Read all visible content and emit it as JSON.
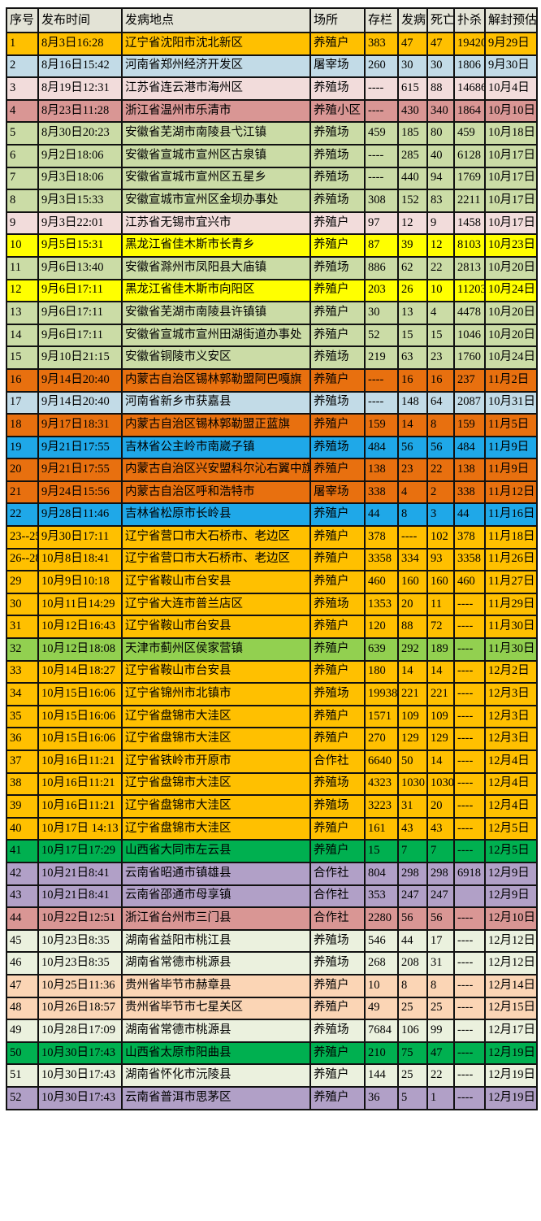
{
  "colors": {
    "header_bg": "#E3E3D6",
    "grid_line": "#111111",
    "red_date": "#F10000",
    "page_bg": "#FFFFFF",
    "gold": "#FFC000",
    "light_blue": "#C2DBE7",
    "pink": "#F2DCDB",
    "rose": "#D99694",
    "olive_green": "#CBDCA6",
    "yellow": "#FFFF00",
    "orange": "#E8700F",
    "bright_blue": "#1FA8E8",
    "lime_green": "#92D050",
    "green": "#00B050",
    "purple": "#B1A0C7",
    "cream": "#EBF1DE",
    "peach": "#FBD5B5"
  },
  "chart_data": {
    "type": "table",
    "columns": [
      "序号",
      "发布时间",
      "发病地点",
      "场所",
      "存栏",
      "发病",
      "死亡",
      "扑杀",
      "解封预估"
    ],
    "rows": [
      {
        "no": "1",
        "time": "8月3日16:28",
        "place": "辽宁省沈阳市沈北新区",
        "venue": "养殖户",
        "stock": "383",
        "sick": "47",
        "dead": "47",
        "culled": "19420",
        "unseal": "9月29日",
        "bg": "#FFC000",
        "unseal_red": true
      },
      {
        "no": "2",
        "time": "8月16日15:42",
        "place": "河南省郑州经济开发区",
        "venue": "屠宰场",
        "stock": "260",
        "sick": "30",
        "dead": "30",
        "culled": "1806",
        "unseal": "9月30日",
        "bg": "#C2DBE7",
        "unseal_red": true
      },
      {
        "no": "3",
        "time": "8月19日12:31",
        "place": "江苏省连云港市海州区",
        "venue": "养殖场",
        "stock": "----",
        "sick": "615",
        "dead": "88",
        "culled": "14686",
        "unseal": "10月4日",
        "bg": "#F2DCDB",
        "unseal_red": true
      },
      {
        "no": "4",
        "time": "8月23日11:28",
        "place": "浙江省温州市乐清市",
        "venue": "养殖小区",
        "stock": "----",
        "sick": "430",
        "dead": "340",
        "culled": "1864",
        "unseal": "10月10日",
        "bg": "#D99694",
        "unseal_red": true
      },
      {
        "no": "5",
        "time": "8月30日20:23",
        "place": "安徽省芜湖市南陵县弋江镇",
        "venue": "养殖场",
        "stock": "459",
        "sick": "185",
        "dead": "80",
        "culled": "459",
        "unseal": "10月18日",
        "bg": "#CBDCA6",
        "unseal_red": true
      },
      {
        "no": "6",
        "time": "9月2日18:06",
        "place": "安徽省宣城市宣州区古泉镇",
        "venue": "养殖场",
        "stock": "----",
        "sick": "285",
        "dead": "40",
        "culled": "6128",
        "unseal": "10月17日",
        "bg": "#CBDCA6",
        "unseal_red": true
      },
      {
        "no": "7",
        "time": "9月3日18:06",
        "place": "安徽省宣城市宣州区五星乡",
        "venue": "养殖场",
        "stock": "----",
        "sick": "440",
        "dead": "94",
        "culled": "1769",
        "unseal": "10月17日",
        "bg": "#CBDCA6",
        "unseal_red": true
      },
      {
        "no": "8",
        "time": "9月3日15:33",
        "place": "安徽宣城市宣州区金坝办事处",
        "venue": "养殖场",
        "stock": "308",
        "sick": "152",
        "dead": "83",
        "culled": "2211",
        "unseal": "10月17日",
        "bg": "#CBDCA6",
        "unseal_red": true
      },
      {
        "no": "9",
        "time": "9月3日22:01",
        "place": "江苏省无锡市宜兴市",
        "venue": "养殖户",
        "stock": "97",
        "sick": "12",
        "dead": "9",
        "culled": "1458",
        "unseal": "10月17日",
        "bg": "#F2DCDB",
        "unseal_red": true
      },
      {
        "no": "10",
        "time": "9月5日15:31",
        "place": "黑龙江省佳木斯市长青乡",
        "venue": "养殖户",
        "stock": "87",
        "sick": "39",
        "dead": "12",
        "culled": "8103",
        "unseal": "10月23日",
        "bg": "#FFFF00",
        "unseal_red": false
      },
      {
        "no": "11",
        "time": "9月6日13:40",
        "place": "安徽省滁州市凤阳县大庙镇",
        "venue": "养殖场",
        "stock": "886",
        "sick": "62",
        "dead": "22",
        "culled": "2813",
        "unseal": "10月20日",
        "bg": "#CBDCA6",
        "unseal_red": true
      },
      {
        "no": "12",
        "time": "9月6日17:11",
        "place": "黑龙江省佳木斯市向阳区",
        "venue": "养殖户",
        "stock": "203",
        "sick": "26",
        "dead": "10",
        "culled": "11203",
        "unseal": "10月24日",
        "bg": "#FFFF00",
        "unseal_red": false
      },
      {
        "no": "13",
        "time": "9月6日17:11",
        "place": "安徽省芜湖市南陵县许镇镇",
        "venue": "养殖户",
        "stock": "30",
        "sick": "13",
        "dead": "4",
        "culled": "4478",
        "unseal": "10月20日",
        "bg": "#CBDCA6",
        "unseal_red": true
      },
      {
        "no": "14",
        "time": "9月6日17:11",
        "place": "安徽省宣城市宣州田湖街道办事处",
        "venue": "养殖户",
        "stock": "52",
        "sick": "15",
        "dead": "15",
        "culled": "1046",
        "unseal": "10月20日",
        "bg": "#CBDCA6",
        "unseal_red": true
      },
      {
        "no": "15",
        "time": "9月10日21:15",
        "place": "安徽省铜陵市义安区",
        "venue": "养殖场",
        "stock": "219",
        "sick": "63",
        "dead": "23",
        "culled": "1760",
        "unseal": "10月24日",
        "bg": "#CBDCA6",
        "unseal_red": true
      },
      {
        "no": "16",
        "time": "9月14日20:40",
        "place": "内蒙古自治区锡林郭勒盟阿巴嘎旗",
        "venue": "养殖户",
        "stock": "----",
        "sick": "16",
        "dead": "16",
        "culled": "237",
        "unseal": "11月2日",
        "bg": "#E8700F",
        "unseal_red": false
      },
      {
        "no": "17",
        "time": "9月14日20:40",
        "place": "河南省新乡市获嘉县",
        "venue": "养殖场",
        "stock": "----",
        "sick": "148",
        "dead": "64",
        "culled": "2087",
        "unseal": "10月31日",
        "bg": "#C2DBE7",
        "unseal_red": true
      },
      {
        "no": "18",
        "time": "9月17日18:31",
        "place": "内蒙古自治区锡林郭勒盟正蓝旗",
        "venue": "养殖户",
        "stock": "159",
        "sick": "14",
        "dead": "8",
        "culled": "159",
        "unseal": "11月5日",
        "bg": "#E8700F",
        "unseal_red": false
      },
      {
        "no": "19",
        "time": "9月21日17:55",
        "place": "吉林省公主岭市南崴子镇",
        "venue": "养殖场",
        "stock": "484",
        "sick": "56",
        "dead": "56",
        "culled": "484",
        "unseal": "11月9日",
        "bg": "#1FA8E8",
        "unseal_red": false
      },
      {
        "no": "20",
        "time": "9月21日17:55",
        "place": "内蒙古自治区兴安盟科尔沁右翼中旗",
        "venue": "养殖户",
        "stock": "138",
        "sick": "23",
        "dead": "22",
        "culled": "138",
        "unseal": "11月9日",
        "bg": "#E8700F",
        "unseal_red": false
      },
      {
        "no": "21",
        "time": "9月24日15:56",
        "place": "内蒙古自治区呼和浩特市",
        "venue": "屠宰场",
        "stock": "338",
        "sick": "4",
        "dead": "2",
        "culled": "338",
        "unseal": "11月12日",
        "bg": "#E8700F",
        "unseal_red": false
      },
      {
        "no": "22",
        "time": "9月28日11:46",
        "place": "吉林省松原市长岭县",
        "venue": "养殖户",
        "stock": "44",
        "sick": "8",
        "dead": "3",
        "culled": "44",
        "unseal": "11月16日",
        "bg": "#1FA8E8",
        "unseal_red": false
      },
      {
        "no": "23--25",
        "time": "9月30日17:11",
        "place": "辽宁省营口市大石桥市、老边区",
        "venue": "养殖户",
        "stock": "378",
        "sick": "----",
        "dead": "102",
        "culled": "378",
        "unseal": "11月18日",
        "bg": "#FFC000",
        "unseal_red": false
      },
      {
        "no": "26--28",
        "time": "10月8日18:41",
        "place": "辽宁省营口市大石桥市、老边区",
        "venue": "养殖户",
        "stock": "3358",
        "sick": "334",
        "dead": "93",
        "culled": "3358",
        "unseal": "11月26日",
        "bg": "#FFC000",
        "unseal_red": false
      },
      {
        "no": "29",
        "time": "10月9日10:18",
        "place": "辽宁省鞍山市台安县",
        "venue": "养殖户",
        "stock": "460",
        "sick": "160",
        "dead": "160",
        "culled": "460",
        "unseal": "11月27日",
        "bg": "#FFC000",
        "unseal_red": false
      },
      {
        "no": "30",
        "time": "10月11日14:29",
        "place": "辽宁省大连市普兰店区",
        "venue": "养殖场",
        "stock": "1353",
        "sick": "20",
        "dead": "11",
        "culled": "----",
        "unseal": "11月29日",
        "bg": "#FFC000",
        "unseal_red": false
      },
      {
        "no": "31",
        "time": "10月12日16:43",
        "place": "辽宁省鞍山市台安县",
        "venue": "养殖户",
        "stock": "120",
        "sick": "88",
        "dead": "72",
        "culled": "----",
        "unseal": "11月30日",
        "bg": "#FFC000",
        "unseal_red": false
      },
      {
        "no": "32",
        "time": "10月12日18:08",
        "place": "天津市蓟州区侯家营镇",
        "venue": "养殖户",
        "stock": "639",
        "sick": "292",
        "dead": "189",
        "culled": "----",
        "unseal": "11月30日",
        "bg": "#92D050",
        "unseal_red": false
      },
      {
        "no": "33",
        "time": "10月14日18:27",
        "place": "辽宁省鞍山市台安县",
        "venue": "养殖户",
        "stock": "180",
        "sick": "14",
        "dead": "14",
        "culled": "----",
        "unseal": "12月2日",
        "bg": "#FFC000",
        "unseal_red": false
      },
      {
        "no": "34",
        "time": "10月15日16:06",
        "place": "辽宁省锦州市北镇市",
        "venue": "养殖场",
        "stock": "19938",
        "sick": "221",
        "dead": "221",
        "culled": "----",
        "unseal": "12月3日",
        "bg": "#FFC000",
        "unseal_red": false
      },
      {
        "no": "35",
        "time": "10月15日16:06",
        "place": "辽宁省盘锦市大洼区",
        "venue": "养殖户",
        "stock": "1571",
        "sick": "109",
        "dead": "109",
        "culled": "----",
        "unseal": "12月3日",
        "bg": "#FFC000",
        "unseal_red": false
      },
      {
        "no": "36",
        "time": "10月15日16:06",
        "place": "辽宁省盘锦市大洼区",
        "venue": "养殖户",
        "stock": "270",
        "sick": "129",
        "dead": "129",
        "culled": "----",
        "unseal": "12月3日",
        "bg": "#FFC000",
        "unseal_red": false
      },
      {
        "no": "37",
        "time": "10月16日11:21",
        "place": "辽宁省铁岭市开原市",
        "venue": "合作社",
        "stock": "6640",
        "sick": "50",
        "dead": "14",
        "culled": "----",
        "unseal": "12月4日",
        "bg": "#FFC000",
        "unseal_red": false
      },
      {
        "no": "38",
        "time": "10月16日11:21",
        "place": "辽宁省盘锦市大洼区",
        "venue": "养殖场",
        "stock": "4323",
        "sick": "1030",
        "dead": "1030",
        "culled": "----",
        "unseal": "12月4日",
        "bg": "#FFC000",
        "unseal_red": false
      },
      {
        "no": "39",
        "time": "10月16日11:21",
        "place": "辽宁省盘锦市大洼区",
        "venue": "养殖场",
        "stock": "3223",
        "sick": "31",
        "dead": "20",
        "culled": "----",
        "unseal": "12月4日",
        "bg": "#FFC000",
        "unseal_red": false
      },
      {
        "no": "40",
        "time": "10月17日 14:13",
        "place": "辽宁省盘锦市大洼区",
        "venue": "养殖户",
        "stock": "161",
        "sick": "43",
        "dead": "43",
        "culled": "----",
        "unseal": "12月5日",
        "bg": "#FFC000",
        "unseal_red": false
      },
      {
        "no": "41",
        "time": "10月17日17:29",
        "place": "山西省大同市左云县",
        "venue": "养殖户",
        "stock": "15",
        "sick": "7",
        "dead": "7",
        "culled": "----",
        "unseal": "12月5日",
        "bg": "#00B050",
        "unseal_red": false
      },
      {
        "no": "42",
        "time": "10月21日8:41",
        "place": "云南省昭通市镇雄县",
        "venue": "合作社",
        "stock": "804",
        "sick": "298",
        "dead": "298",
        "culled": "6918",
        "unseal": "12月9日",
        "bg": "#B1A0C7",
        "unseal_red": false
      },
      {
        "no": "43",
        "time": "10月21日8:41",
        "place": "云南省邵通市母享镇",
        "venue": "合作社",
        "stock": "353",
        "sick": "247",
        "dead": "247",
        "culled": "",
        "unseal": "12月9日",
        "bg": "#B1A0C7",
        "unseal_red": false
      },
      {
        "no": "44",
        "time": "10月22日12:51",
        "place": "浙江省台州市三门县",
        "venue": "合作社",
        "stock": "2280",
        "sick": "56",
        "dead": "56",
        "culled": "----",
        "unseal": "12月10日",
        "bg": "#D99694",
        "unseal_red": false
      },
      {
        "no": "45",
        "time": "10月23日8:35",
        "place": "湖南省益阳市桃江县",
        "venue": "养殖场",
        "stock": "546",
        "sick": "44",
        "dead": "17",
        "culled": "----",
        "unseal": "12月12日",
        "bg": "#EBF1DE",
        "unseal_red": false
      },
      {
        "no": "46",
        "time": "10月23日8:35",
        "place": "湖南省常德市桃源县",
        "venue": "养殖场",
        "stock": "268",
        "sick": "208",
        "dead": "31",
        "culled": "----",
        "unseal": "12月12日",
        "bg": "#EBF1DE",
        "unseal_red": false
      },
      {
        "no": "47",
        "time": "10月25日11:36",
        "place": "贵州省毕节市赫章县",
        "venue": "养殖户",
        "stock": "10",
        "sick": "8",
        "dead": "8",
        "culled": "----",
        "unseal": "12月14日",
        "bg": "#FBD5B5",
        "unseal_red": false
      },
      {
        "no": "48",
        "time": "10月26日18:57",
        "place": "贵州省毕节市七星关区",
        "venue": "养殖户",
        "stock": "49",
        "sick": "25",
        "dead": "25",
        "culled": "----",
        "unseal": "12月15日",
        "bg": "#FBD5B5",
        "unseal_red": false
      },
      {
        "no": "49",
        "time": "10月28日17:09",
        "place": "湖南省常德市桃源县",
        "venue": "养殖场",
        "stock": "7684",
        "sick": "106",
        "dead": "99",
        "culled": "----",
        "unseal": "12月17日",
        "bg": "#EBF1DE",
        "unseal_red": false
      },
      {
        "no": "50",
        "time": "10月30日17:43",
        "place": "山西省太原市阳曲县",
        "venue": "养殖户",
        "stock": "210",
        "sick": "75",
        "dead": "47",
        "culled": "----",
        "unseal": "12月19日",
        "bg": "#00B050",
        "unseal_red": false
      },
      {
        "no": "51",
        "time": "10月30日17:43",
        "place": "湖南省怀化市沅陵县",
        "venue": "养殖户",
        "stock": "144",
        "sick": "25",
        "dead": "22",
        "culled": "----",
        "unseal": "12月19日",
        "bg": "#EBF1DE",
        "unseal_red": false
      },
      {
        "no": "52",
        "time": "10月30日17:43",
        "place": "云南省普洱市思茅区",
        "venue": "养殖户",
        "stock": "36",
        "sick": "5",
        "dead": "1",
        "culled": "----",
        "unseal": "12月19日",
        "bg": "#B1A0C7",
        "unseal_red": false
      }
    ]
  }
}
